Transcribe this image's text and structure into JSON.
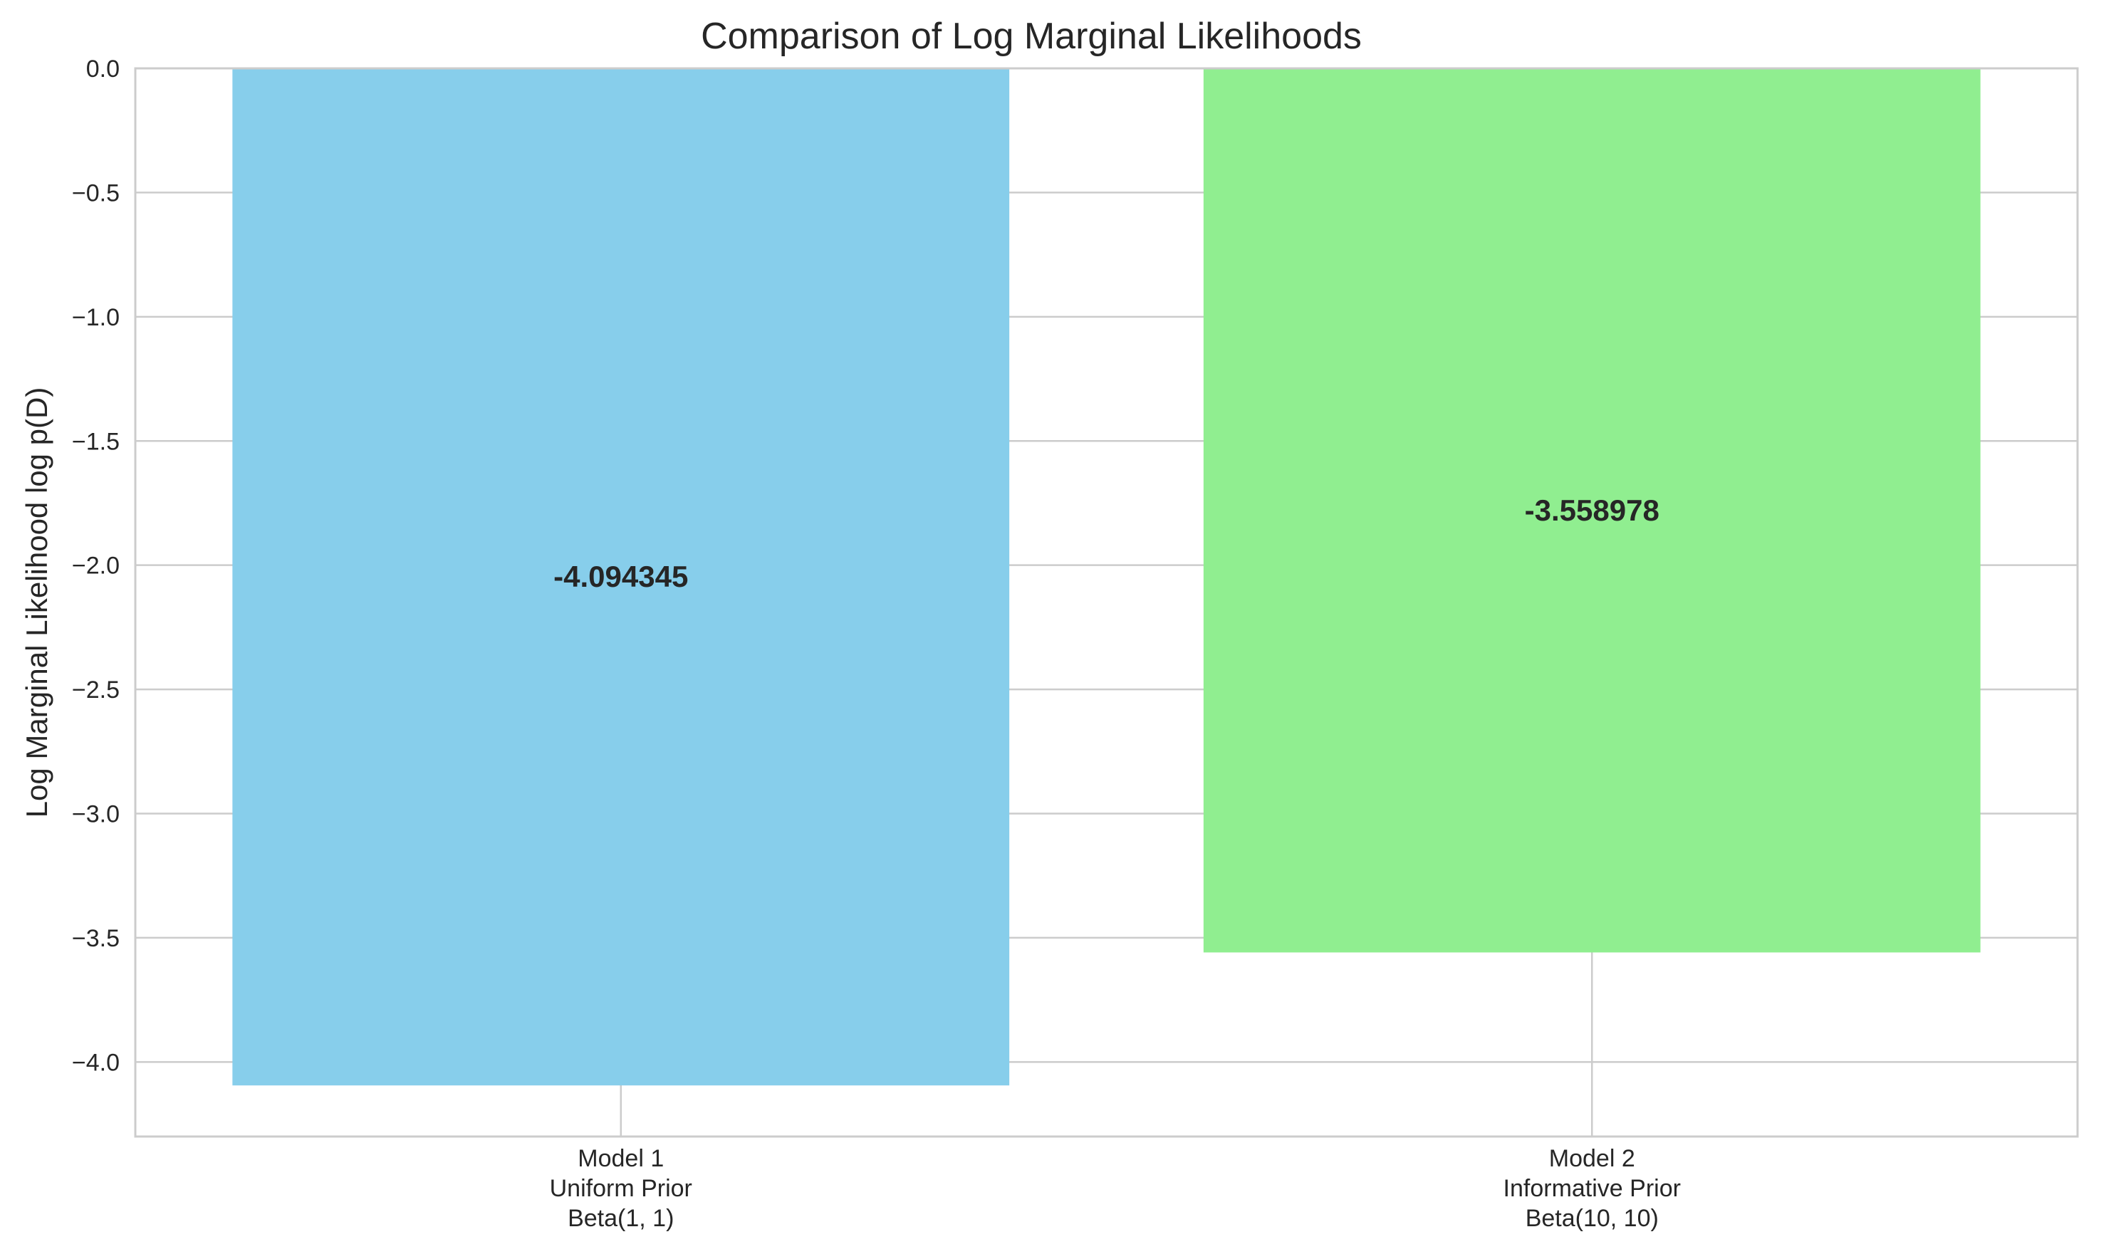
{
  "chart_data": {
    "type": "bar",
    "title": "Comparison of Log Marginal Likelihoods",
    "xlabel": "",
    "ylabel": "Log Marginal Likelihood log p(D)",
    "categories": [
      [
        "Model 1",
        "Uniform Prior",
        "Beta(1, 1)"
      ],
      [
        "Model 2",
        "Informative Prior",
        "Beta(10, 10)"
      ]
    ],
    "values": [
      -4.094345,
      -3.558978
    ],
    "value_labels": [
      "-4.094345",
      "-3.558978"
    ],
    "colors": [
      "#87ceeb",
      "#90ee90"
    ],
    "ylim": [
      -4.3,
      0.0
    ],
    "yticks": [
      0.0,
      -0.5,
      -1.0,
      -1.5,
      -2.0,
      -2.5,
      -3.0,
      -3.5,
      -4.0
    ],
    "ytick_labels": [
      "0.0",
      "−0.5",
      "−1.0",
      "−1.5",
      "−2.0",
      "−2.5",
      "−3.0",
      "−3.5",
      "−4.0"
    ],
    "grid": true,
    "legend": "none"
  }
}
